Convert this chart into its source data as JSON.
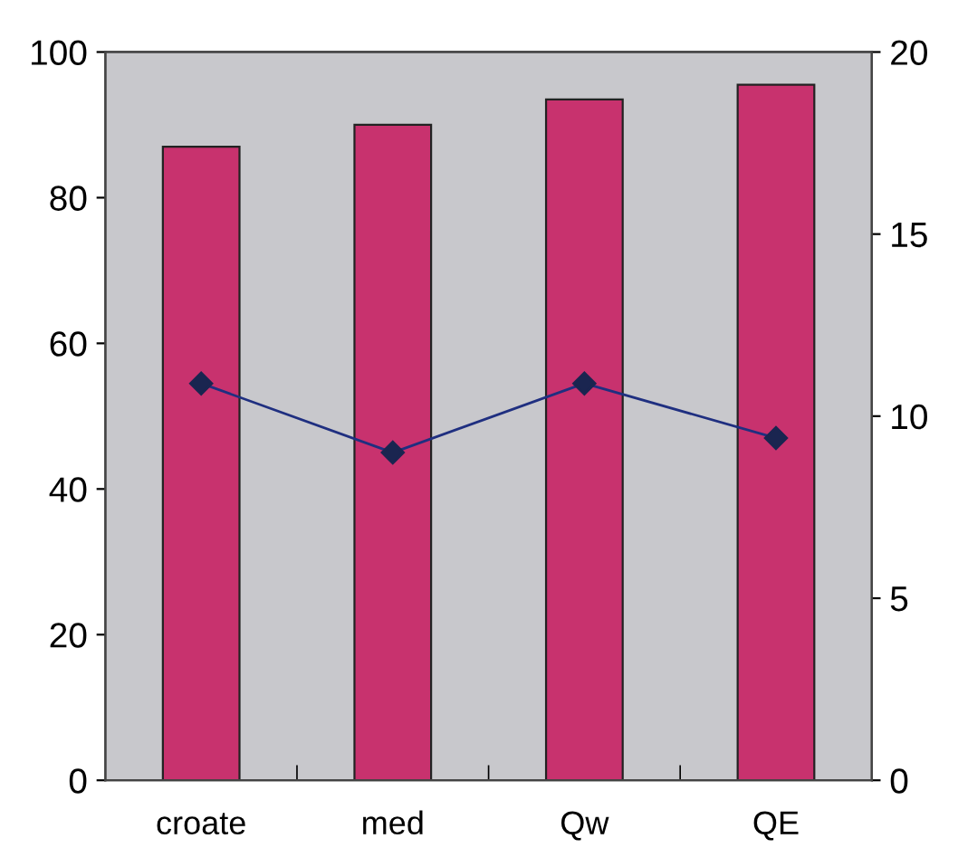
{
  "chart_data": {
    "type": "bar",
    "categories": [
      "croate",
      "med",
      "Qw",
      "QE"
    ],
    "series": [
      {
        "color": "#c8326e",
        "values": [
          87,
          90,
          93.5,
          95.5
        ]
      },
      {
        "type": "line",
        "axis": "y2",
        "color": "#1f2f80",
        "values": [
          10.9,
          9.0,
          10.9,
          9.4
        ]
      }
    ],
    "ylim": [
      0,
      100
    ],
    "yticks": [
      0,
      20,
      40,
      60,
      80,
      100
    ],
    "y2lim": [
      0,
      20
    ],
    "y2ticks": [
      0,
      5,
      10,
      15,
      20
    ],
    "marker": "diamond",
    "line_style": "solid",
    "grid": false,
    "legend": false
  }
}
